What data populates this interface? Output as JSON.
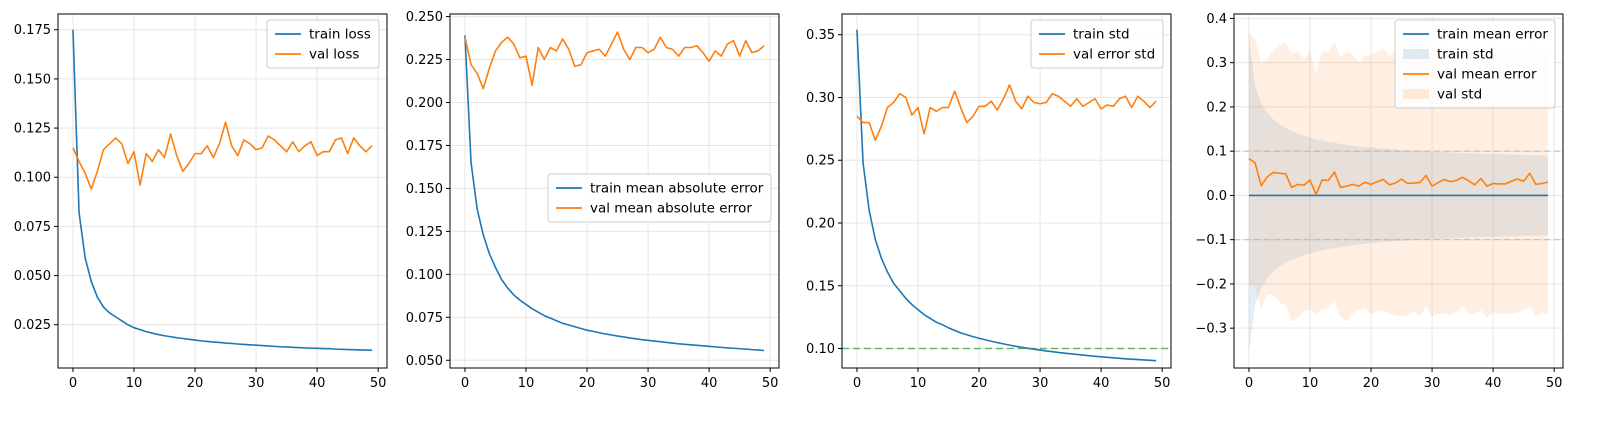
{
  "chart_data": [
    {
      "type": "line",
      "xlabel": "",
      "ylabel": "",
      "xlim": [
        -2.45,
        51.45
      ],
      "ylim": [
        0.003,
        0.183
      ],
      "xticks": [
        0,
        10,
        20,
        30,
        40,
        50
      ],
      "yticks": [
        0.025,
        0.05,
        0.075,
        0.1,
        0.125,
        0.15,
        0.175
      ],
      "ytick_labels": [
        "0.025",
        "0.050",
        "0.075",
        "0.100",
        "0.125",
        "0.150",
        "0.175"
      ],
      "grid": true,
      "legend_position": "upper right",
      "series": [
        {
          "name": "train loss",
          "color": "#1f77b4",
          "kind": "line",
          "values": [
            0.175,
            0.082,
            0.059,
            0.047,
            0.039,
            0.034,
            0.031,
            0.029,
            0.027,
            0.025,
            0.0235,
            0.0225,
            0.0215,
            0.0207,
            0.02,
            0.0194,
            0.0189,
            0.0184,
            0.018,
            0.0176,
            0.0172,
            0.0168,
            0.0165,
            0.0162,
            0.016,
            0.0157,
            0.0155,
            0.0152,
            0.015,
            0.0148,
            0.0146,
            0.0144,
            0.0142,
            0.014,
            0.0138,
            0.0137,
            0.0135,
            0.0134,
            0.0132,
            0.0131,
            0.013,
            0.0129,
            0.0128,
            0.0126,
            0.0125,
            0.0124,
            0.0123,
            0.0122,
            0.0121,
            0.012
          ]
        },
        {
          "name": "val loss",
          "color": "#ff7f0e",
          "kind": "line",
          "values": [
            0.115,
            0.108,
            0.102,
            0.094,
            0.103,
            0.114,
            0.117,
            0.12,
            0.117,
            0.107,
            0.113,
            0.096,
            0.112,
            0.108,
            0.114,
            0.11,
            0.122,
            0.111,
            0.103,
            0.107,
            0.112,
            0.112,
            0.116,
            0.11,
            0.117,
            0.128,
            0.116,
            0.111,
            0.119,
            0.117,
            0.114,
            0.115,
            0.121,
            0.119,
            0.116,
            0.113,
            0.118,
            0.113,
            0.116,
            0.118,
            0.111,
            0.113,
            0.113,
            0.119,
            0.12,
            0.112,
            0.12,
            0.116,
            0.113,
            0.116
          ]
        }
      ]
    },
    {
      "type": "line",
      "xlabel": "",
      "ylabel": "",
      "xlim": [
        -2.45,
        51.45
      ],
      "ylim": [
        0.0455,
        0.2515
      ],
      "xticks": [
        0,
        10,
        20,
        30,
        40,
        50
      ],
      "yticks": [
        0.05,
        0.075,
        0.1,
        0.125,
        0.15,
        0.175,
        0.2,
        0.225,
        0.25
      ],
      "ytick_labels": [
        "0.050",
        "0.075",
        "0.100",
        "0.125",
        "0.150",
        "0.175",
        "0.200",
        "0.225",
        "0.250"
      ],
      "grid": true,
      "legend_position": "center right",
      "series": [
        {
          "name": "train mean absolute error",
          "color": "#1f77b4",
          "kind": "line",
          "values": [
            0.239,
            0.165,
            0.138,
            0.123,
            0.112,
            0.104,
            0.097,
            0.092,
            0.088,
            0.085,
            0.0825,
            0.08,
            0.078,
            0.076,
            0.0745,
            0.073,
            0.0715,
            0.0705,
            0.0695,
            0.0685,
            0.0675,
            0.0668,
            0.066,
            0.0653,
            0.0647,
            0.0641,
            0.0636,
            0.063,
            0.0625,
            0.062,
            0.0616,
            0.0612,
            0.0608,
            0.0604,
            0.06,
            0.0596,
            0.0593,
            0.059,
            0.0587,
            0.0584,
            0.0581,
            0.0578,
            0.0575,
            0.0572,
            0.057,
            0.0567,
            0.0565,
            0.0562,
            0.056,
            0.0557
          ]
        },
        {
          "name": "val mean absolute error",
          "color": "#ff7f0e",
          "kind": "line",
          "values": [
            0.238,
            0.222,
            0.217,
            0.208,
            0.22,
            0.23,
            0.235,
            0.238,
            0.234,
            0.226,
            0.227,
            0.21,
            0.232,
            0.225,
            0.232,
            0.23,
            0.237,
            0.231,
            0.221,
            0.222,
            0.229,
            0.23,
            0.231,
            0.227,
            0.234,
            0.241,
            0.231,
            0.225,
            0.232,
            0.232,
            0.229,
            0.231,
            0.238,
            0.232,
            0.231,
            0.227,
            0.232,
            0.232,
            0.233,
            0.229,
            0.224,
            0.23,
            0.227,
            0.234,
            0.236,
            0.227,
            0.236,
            0.229,
            0.23,
            0.233
          ]
        }
      ]
    },
    {
      "type": "line",
      "xlabel": "",
      "ylabel": "",
      "xlim": [
        -2.45,
        51.45
      ],
      "ylim": [
        0.0845,
        0.3665
      ],
      "xticks": [
        0,
        10,
        20,
        30,
        40,
        50
      ],
      "yticks": [
        0.1,
        0.15,
        0.2,
        0.25,
        0.3,
        0.35
      ],
      "ytick_labels": [
        "0.10",
        "0.15",
        "0.20",
        "0.25",
        "0.30",
        "0.35"
      ],
      "grid": true,
      "legend_position": "upper right",
      "series": [
        {
          "name": "train std",
          "color": "#1f77b4",
          "kind": "line",
          "values": [
            0.354,
            0.248,
            0.21,
            0.187,
            0.172,
            0.161,
            0.152,
            0.146,
            0.14,
            0.135,
            0.131,
            0.127,
            0.124,
            0.121,
            0.119,
            0.1165,
            0.1145,
            0.1125,
            0.111,
            0.1095,
            0.1082,
            0.107,
            0.1058,
            0.1047,
            0.1037,
            0.1027,
            0.1018,
            0.101,
            0.1002,
            0.0995,
            0.0988,
            0.0981,
            0.0975,
            0.0969,
            0.0963,
            0.0958,
            0.0953,
            0.0948,
            0.0943,
            0.0938,
            0.0934,
            0.093,
            0.0926,
            0.0922,
            0.0918,
            0.0915,
            0.0912,
            0.0909,
            0.0906,
            0.0903
          ]
        },
        {
          "name": "val error std",
          "color": "#ff7f0e",
          "kind": "line",
          "values": [
            0.285,
            0.28,
            0.28,
            0.266,
            0.277,
            0.292,
            0.296,
            0.303,
            0.3,
            0.286,
            0.292,
            0.271,
            0.292,
            0.289,
            0.292,
            0.292,
            0.305,
            0.292,
            0.28,
            0.285,
            0.293,
            0.293,
            0.297,
            0.29,
            0.299,
            0.31,
            0.297,
            0.291,
            0.301,
            0.296,
            0.295,
            0.296,
            0.303,
            0.301,
            0.297,
            0.293,
            0.299,
            0.293,
            0.296,
            0.299,
            0.291,
            0.294,
            0.293,
            0.299,
            0.301,
            0.292,
            0.301,
            0.297,
            0.292,
            0.297
          ]
        },
        {
          "name": "",
          "color": "#2ca02c",
          "kind": "hline",
          "dashed": true,
          "y": 0.1
        }
      ]
    },
    {
      "type": "line",
      "xlabel": "",
      "ylabel": "",
      "xlim": [
        -2.45,
        51.45
      ],
      "ylim": [
        -0.39,
        0.41
      ],
      "xticks": [
        0,
        10,
        20,
        30,
        40,
        50
      ],
      "yticks": [
        -0.3,
        -0.2,
        -0.1,
        0.0,
        0.1,
        0.2,
        0.3,
        0.4
      ],
      "ytick_labels": [
        "−0.3",
        "−0.2",
        "−0.1",
        "0.0",
        "0.1",
        "0.2",
        "0.3",
        "0.4"
      ],
      "grid": true,
      "legend_position": "upper right",
      "hlines": [
        0.1,
        -0.1
      ],
      "series": [
        {
          "name": "train mean error",
          "color": "#1f77b4",
          "kind": "line",
          "values": [
            0,
            0,
            0,
            0,
            0,
            0,
            0,
            0,
            0,
            0,
            0,
            0,
            0,
            0,
            0,
            0,
            0,
            0,
            0,
            0,
            0,
            0,
            0,
            0,
            0,
            0,
            0,
            0,
            0,
            0,
            0,
            0,
            0,
            0,
            0,
            0,
            0,
            0,
            0,
            0,
            0,
            0,
            0,
            0,
            0,
            0,
            0,
            0,
            0,
            0
          ]
        },
        {
          "name": "train std",
          "color": "#1f77b4",
          "kind": "band",
          "center": 0,
          "values": [
            0.354,
            0.248,
            0.21,
            0.187,
            0.172,
            0.161,
            0.152,
            0.146,
            0.14,
            0.135,
            0.131,
            0.127,
            0.124,
            0.121,
            0.119,
            0.1165,
            0.1145,
            0.1125,
            0.111,
            0.1095,
            0.1082,
            0.107,
            0.1058,
            0.1047,
            0.1037,
            0.1027,
            0.1018,
            0.101,
            0.1002,
            0.0995,
            0.0988,
            0.0981,
            0.0975,
            0.0969,
            0.0963,
            0.0958,
            0.0953,
            0.0948,
            0.0943,
            0.0938,
            0.0934,
            0.093,
            0.0926,
            0.0922,
            0.0918,
            0.0915,
            0.0912,
            0.0909,
            0.0906,
            0.0903
          ]
        },
        {
          "name": "val mean error",
          "color": "#ff7f0e",
          "kind": "line",
          "values": [
            0.083,
            0.074,
            0.022,
            0.042,
            0.052,
            0.05,
            0.049,
            0.018,
            0.025,
            0.023,
            0.035,
            0.002,
            0.035,
            0.034,
            0.053,
            0.018,
            0.021,
            0.025,
            0.021,
            0.03,
            0.025,
            0.031,
            0.036,
            0.024,
            0.028,
            0.037,
            0.027,
            0.028,
            0.029,
            0.045,
            0.021,
            0.029,
            0.036,
            0.031,
            0.034,
            0.041,
            0.033,
            0.024,
            0.038,
            0.021,
            0.027,
            0.026,
            0.026,
            0.032,
            0.037,
            0.032,
            0.05,
            0.025,
            0.027,
            0.03
          ]
        },
        {
          "name": "val std",
          "color": "#ff7f0e",
          "kind": "band",
          "center_series": "val mean error",
          "values": [
            0.285,
            0.28,
            0.28,
            0.266,
            0.277,
            0.292,
            0.296,
            0.303,
            0.3,
            0.286,
            0.292,
            0.271,
            0.292,
            0.289,
            0.292,
            0.292,
            0.305,
            0.292,
            0.28,
            0.285,
            0.293,
            0.293,
            0.297,
            0.29,
            0.299,
            0.31,
            0.297,
            0.291,
            0.301,
            0.296,
            0.295,
            0.296,
            0.303,
            0.301,
            0.297,
            0.293,
            0.299,
            0.293,
            0.296,
            0.299,
            0.291,
            0.294,
            0.293,
            0.299,
            0.301,
            0.292,
            0.301,
            0.297,
            0.292,
            0.297
          ]
        }
      ]
    }
  ]
}
